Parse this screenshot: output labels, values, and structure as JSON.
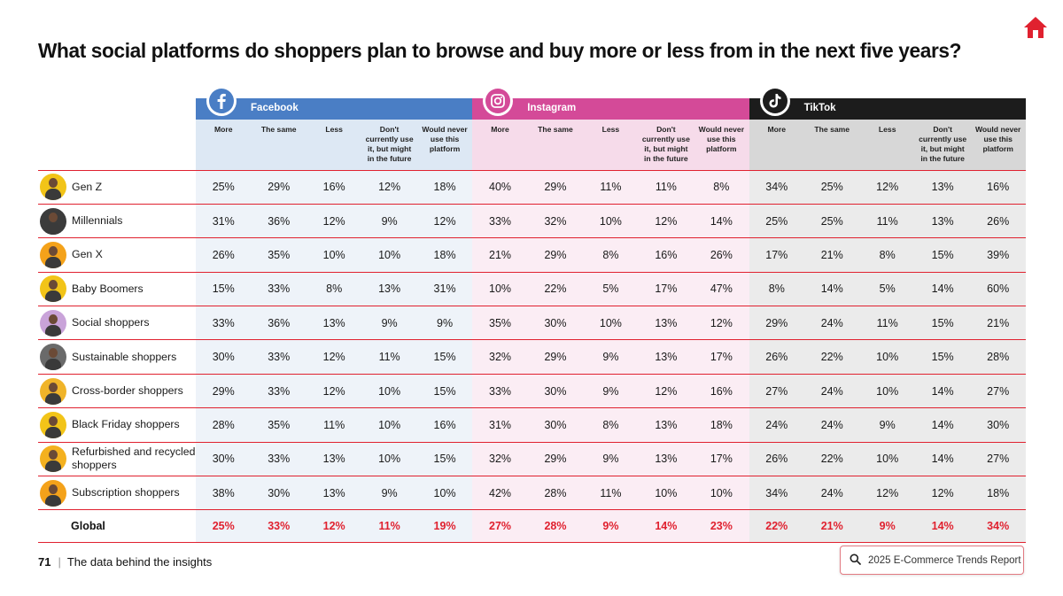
{
  "title": "What social platforms do shoppers plan to browse and buy more or less from in the next five years?",
  "colors": {
    "accent_red": "#e0212f",
    "facebook": "#4a7ec5",
    "instagram": "#d44a98",
    "tiktok": "#1c1c1c"
  },
  "platforms": [
    {
      "name": "Facebook",
      "icon": "facebook-icon"
    },
    {
      "name": "Instagram",
      "icon": "instagram-icon"
    },
    {
      "name": "TikTok",
      "icon": "tiktok-icon"
    }
  ],
  "sub_headers": [
    "More",
    "The same",
    "Less",
    "Don't currently use it, but might in the future",
    "Would never use this platform"
  ],
  "rows": [
    {
      "label": "Gen Z",
      "values": [
        "25%",
        "29%",
        "16%",
        "12%",
        "18%",
        "40%",
        "29%",
        "11%",
        "11%",
        "8%",
        "34%",
        "25%",
        "12%",
        "13%",
        "16%"
      ]
    },
    {
      "label": "Millennials",
      "values": [
        "31%",
        "36%",
        "12%",
        "9%",
        "12%",
        "33%",
        "32%",
        "10%",
        "12%",
        "14%",
        "25%",
        "25%",
        "11%",
        "13%",
        "26%"
      ]
    },
    {
      "label": "Gen X",
      "values": [
        "26%",
        "35%",
        "10%",
        "10%",
        "18%",
        "21%",
        "29%",
        "8%",
        "16%",
        "26%",
        "17%",
        "21%",
        "8%",
        "15%",
        "39%"
      ]
    },
    {
      "label": "Baby Boomers",
      "values": [
        "15%",
        "33%",
        "8%",
        "13%",
        "31%",
        "10%",
        "22%",
        "5%",
        "17%",
        "47%",
        "8%",
        "14%",
        "5%",
        "14%",
        "60%"
      ]
    },
    {
      "label": "Social shoppers",
      "values": [
        "33%",
        "36%",
        "13%",
        "9%",
        "9%",
        "35%",
        "30%",
        "10%",
        "13%",
        "12%",
        "29%",
        "24%",
        "11%",
        "15%",
        "21%"
      ]
    },
    {
      "label": "Sustainable shoppers",
      "values": [
        "30%",
        "33%",
        "12%",
        "11%",
        "15%",
        "32%",
        "29%",
        "9%",
        "13%",
        "17%",
        "26%",
        "22%",
        "10%",
        "15%",
        "28%"
      ]
    },
    {
      "label": "Cross-border shoppers",
      "values": [
        "29%",
        "33%",
        "12%",
        "10%",
        "15%",
        "33%",
        "30%",
        "9%",
        "12%",
        "16%",
        "27%",
        "24%",
        "10%",
        "14%",
        "27%"
      ]
    },
    {
      "label": "Black Friday shoppers",
      "values": [
        "28%",
        "35%",
        "11%",
        "10%",
        "16%",
        "31%",
        "30%",
        "8%",
        "13%",
        "18%",
        "24%",
        "24%",
        "9%",
        "14%",
        "30%"
      ]
    },
    {
      "label": "Refurbished and recycled shoppers",
      "values": [
        "30%",
        "33%",
        "13%",
        "10%",
        "15%",
        "32%",
        "29%",
        "9%",
        "13%",
        "17%",
        "26%",
        "22%",
        "10%",
        "14%",
        "27%"
      ]
    },
    {
      "label": "Subscription shoppers",
      "values": [
        "38%",
        "30%",
        "13%",
        "9%",
        "10%",
        "42%",
        "28%",
        "11%",
        "10%",
        "10%",
        "34%",
        "24%",
        "12%",
        "12%",
        "18%"
      ]
    }
  ],
  "global": {
    "label": "Global",
    "values": [
      "25%",
      "33%",
      "12%",
      "11%",
      "19%",
      "27%",
      "28%",
      "9%",
      "14%",
      "23%",
      "22%",
      "21%",
      "9%",
      "14%",
      "34%"
    ]
  },
  "avatar_colors": [
    "#f2c418",
    "#3b3b3b",
    "#f4a21a",
    "#f2c418",
    "#c9a3d9",
    "#6a6a6a",
    "#f0b429",
    "#f2c418",
    "#f4b11f",
    "#f4a21a"
  ],
  "footer": {
    "page_number": "71",
    "caption": "The data behind the insights",
    "report_button": "2025 E-Commerce Trends Report"
  }
}
